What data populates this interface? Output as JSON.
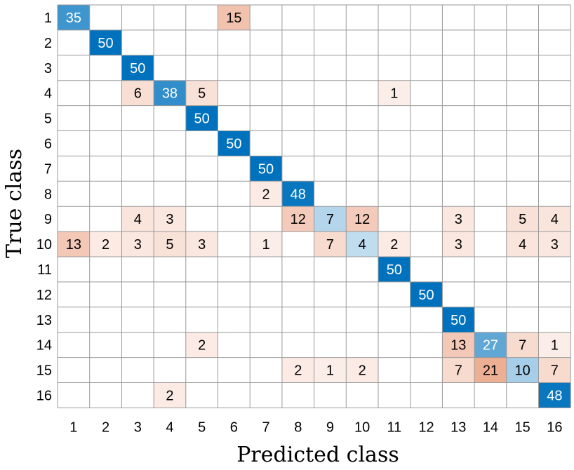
{
  "chart_data": {
    "type": "heatmap",
    "title": "",
    "xlabel": "Predicted class",
    "ylabel": "True class",
    "x_categories": [
      "1",
      "2",
      "3",
      "4",
      "5",
      "6",
      "7",
      "8",
      "9",
      "10",
      "11",
      "12",
      "13",
      "14",
      "15",
      "16"
    ],
    "y_categories": [
      "1",
      "2",
      "3",
      "4",
      "5",
      "6",
      "7",
      "8",
      "9",
      "10",
      "11",
      "12",
      "13",
      "14",
      "15",
      "16"
    ],
    "matrix": [
      [
        35,
        0,
        0,
        0,
        0,
        15,
        0,
        0,
        0,
        0,
        0,
        0,
        0,
        0,
        0,
        0
      ],
      [
        0,
        50,
        0,
        0,
        0,
        0,
        0,
        0,
        0,
        0,
        0,
        0,
        0,
        0,
        0,
        0
      ],
      [
        0,
        0,
        50,
        0,
        0,
        0,
        0,
        0,
        0,
        0,
        0,
        0,
        0,
        0,
        0,
        0
      ],
      [
        0,
        0,
        6,
        38,
        5,
        0,
        0,
        0,
        0,
        0,
        1,
        0,
        0,
        0,
        0,
        0
      ],
      [
        0,
        0,
        0,
        0,
        50,
        0,
        0,
        0,
        0,
        0,
        0,
        0,
        0,
        0,
        0,
        0
      ],
      [
        0,
        0,
        0,
        0,
        0,
        50,
        0,
        0,
        0,
        0,
        0,
        0,
        0,
        0,
        0,
        0
      ],
      [
        0,
        0,
        0,
        0,
        0,
        0,
        50,
        0,
        0,
        0,
        0,
        0,
        0,
        0,
        0,
        0
      ],
      [
        0,
        0,
        0,
        0,
        0,
        0,
        2,
        48,
        0,
        0,
        0,
        0,
        0,
        0,
        0,
        0
      ],
      [
        0,
        0,
        4,
        3,
        0,
        0,
        0,
        12,
        7,
        12,
        0,
        0,
        3,
        0,
        5,
        4
      ],
      [
        13,
        2,
        3,
        5,
        3,
        0,
        1,
        0,
        7,
        4,
        2,
        0,
        3,
        0,
        4,
        3
      ],
      [
        0,
        0,
        0,
        0,
        0,
        0,
        0,
        0,
        0,
        0,
        50,
        0,
        0,
        0,
        0,
        0
      ],
      [
        0,
        0,
        0,
        0,
        0,
        0,
        0,
        0,
        0,
        0,
        0,
        50,
        0,
        0,
        0,
        0
      ],
      [
        0,
        0,
        0,
        0,
        0,
        0,
        0,
        0,
        0,
        0,
        0,
        0,
        50,
        0,
        0,
        0
      ],
      [
        0,
        0,
        0,
        0,
        2,
        0,
        0,
        0,
        0,
        0,
        0,
        0,
        13,
        27,
        7,
        1
      ],
      [
        0,
        0,
        0,
        0,
        0,
        0,
        0,
        2,
        1,
        2,
        0,
        0,
        7,
        21,
        10,
        7
      ],
      [
        0,
        0,
        0,
        2,
        0,
        0,
        0,
        0,
        0,
        0,
        0,
        0,
        0,
        0,
        0,
        48
      ]
    ],
    "max_value": 50,
    "colors": {
      "correct": "#0072bd",
      "error": "#d95319",
      "correct_min": "#ffffff",
      "error_min": "#ffffff",
      "grid": "#999999",
      "text_dark": "#000000",
      "text_light": "#ffffff"
    }
  }
}
